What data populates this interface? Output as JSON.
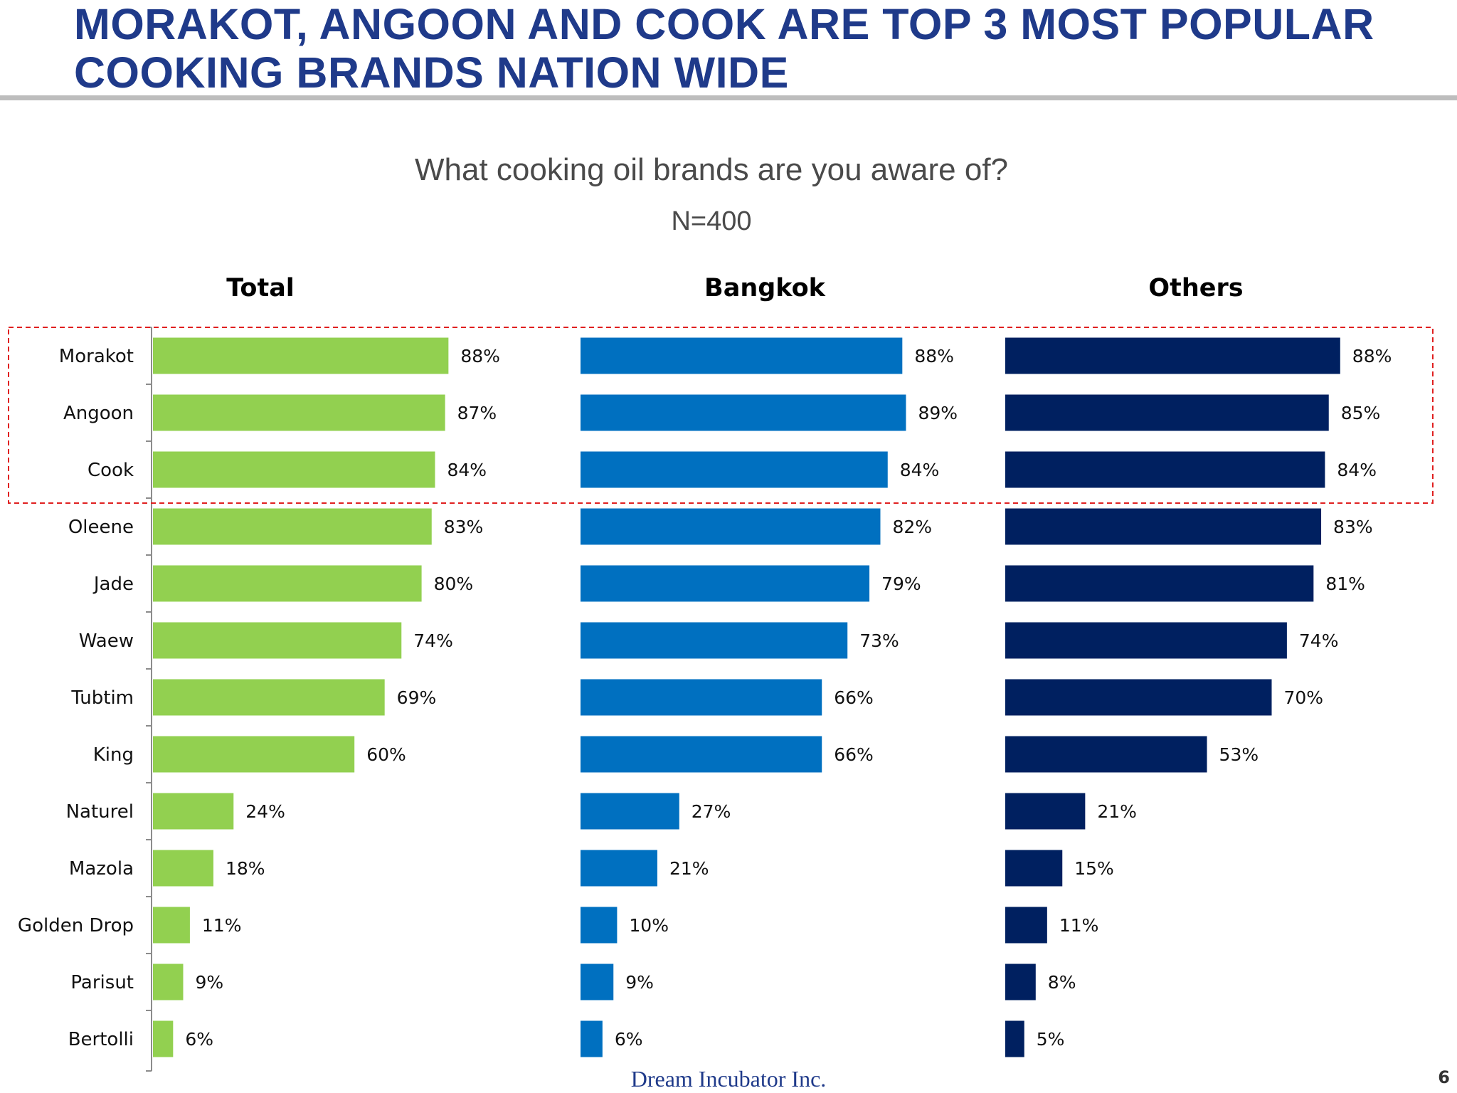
{
  "slide": {
    "title": "MORAKOT, ANGOON AND COOK  ARE TOP 3 MOST POPULAR\nCOOKING BRANDS NATION WIDE",
    "question": "What cooking oil brands are you aware of?",
    "sample": "N=400",
    "footer": "Dream Incubator Inc.",
    "page_number": "6"
  },
  "colors": {
    "title": "#1f3a8a",
    "total": "#92d050",
    "bangkok": "#0070c0",
    "others": "#002060",
    "highlight_box": "#e02020"
  },
  "chart_data": {
    "type": "bar",
    "orientation": "horizontal",
    "categories": [
      "Morakot",
      "Angoon",
      "Cook",
      "Oleene",
      "Jade",
      "Waew",
      "Tubtim",
      "King",
      "Naturel",
      "Mazola",
      "Golden Drop",
      "Parisut",
      "Bertolli"
    ],
    "series": [
      {
        "name": "Total",
        "values": [
          88,
          87,
          84,
          83,
          80,
          74,
          69,
          60,
          24,
          18,
          11,
          9,
          6
        ]
      },
      {
        "name": "Bangkok",
        "values": [
          88,
          89,
          84,
          82,
          79,
          73,
          66,
          66,
          27,
          21,
          10,
          9,
          6
        ]
      },
      {
        "name": "Others",
        "values": [
          88,
          85,
          84,
          83,
          81,
          74,
          70,
          53,
          21,
          15,
          11,
          8,
          5
        ]
      }
    ],
    "value_suffix": "%",
    "xlim": [
      0,
      100
    ],
    "highlighted_categories": [
      "Morakot",
      "Angoon",
      "Cook"
    ]
  }
}
